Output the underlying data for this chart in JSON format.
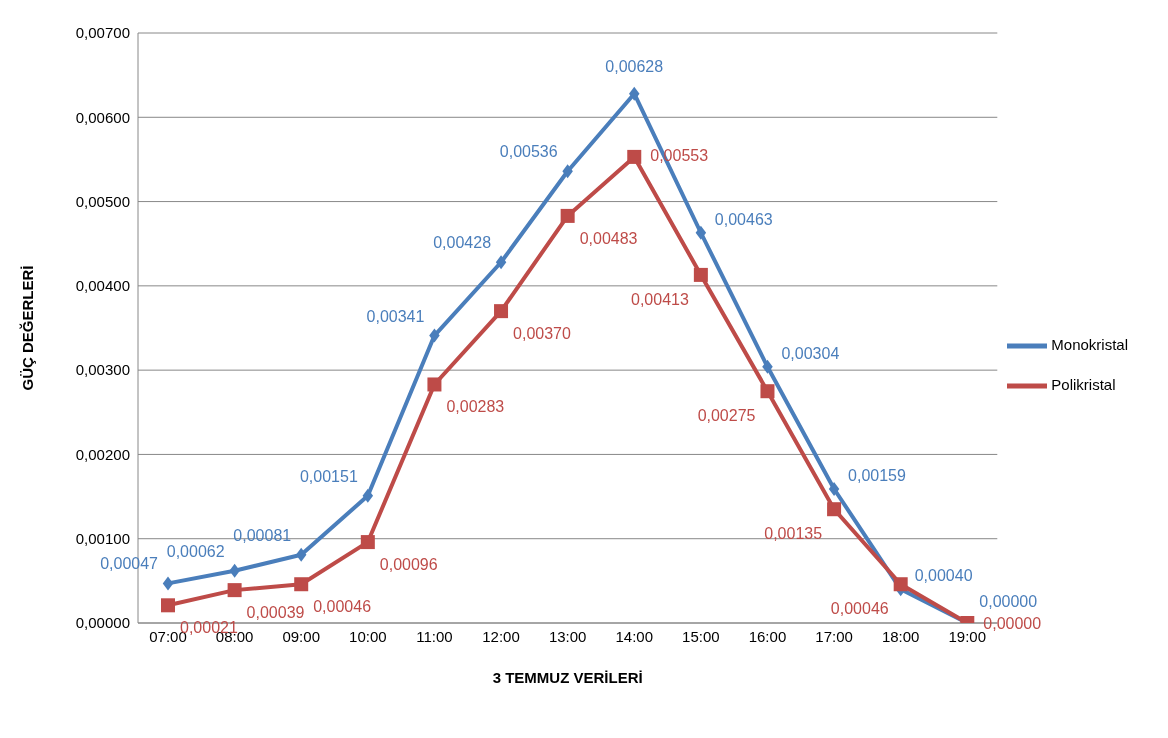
{
  "chart_data": {
    "type": "line",
    "xlabel": "3 TEMMUZ VERİLERİ",
    "ylabel": "GÜÇ DEĞERLERİ",
    "categories": [
      "07:00",
      "08:00",
      "09:00",
      "10:00",
      "11:00",
      "12:00",
      "13:00",
      "14:00",
      "15:00",
      "16:00",
      "17:00",
      "18:00",
      "19:00"
    ],
    "series": [
      {
        "name": "Monokristal",
        "color": "#4a7ebb",
        "marker": "diamond",
        "values": [
          0.00047,
          0.00062,
          0.00081,
          0.00151,
          0.00341,
          0.00428,
          0.00536,
          0.00628,
          0.00463,
          0.00304,
          0.00159,
          0.0004,
          0
        ],
        "value_labels": [
          "0,00047",
          "0,00062",
          "0,00081",
          "0,00151",
          "0,00341",
          "0,00428",
          "0,00536",
          "0,00628",
          "0,00463",
          "0,00304",
          "0,00159",
          "0,00040",
          "0,00000"
        ]
      },
      {
        "name": "Polikristal",
        "color": "#be4b48",
        "marker": "square",
        "values": [
          0.00021,
          0.00039,
          0.00046,
          0.00096,
          0.00283,
          0.0037,
          0.00483,
          0.00553,
          0.00413,
          0.00275,
          0.00135,
          0.00046,
          0
        ],
        "value_labels": [
          "0,00021",
          "0,00039",
          "0,00046",
          "0,00096",
          "0,00283",
          "0,00370",
          "0,00483",
          "0,00553",
          "0,00413",
          "0,00275",
          "0,00135",
          "0,00046",
          "0,00000"
        ]
      }
    ],
    "ylim": [
      0,
      0.007
    ],
    "yticks": [
      {
        "value": 0,
        "label": "0,00000"
      },
      {
        "value": 0.001,
        "label": "0,00100"
      },
      {
        "value": 0.002,
        "label": "0,00200"
      },
      {
        "value": 0.003,
        "label": "0,00300"
      },
      {
        "value": 0.004,
        "label": "0,00400"
      },
      {
        "value": 0.005,
        "label": "0,00500"
      },
      {
        "value": 0.006,
        "label": "0,00600"
      },
      {
        "value": 0.007,
        "label": "0,00700"
      }
    ],
    "grid": "y",
    "legend": "right"
  }
}
